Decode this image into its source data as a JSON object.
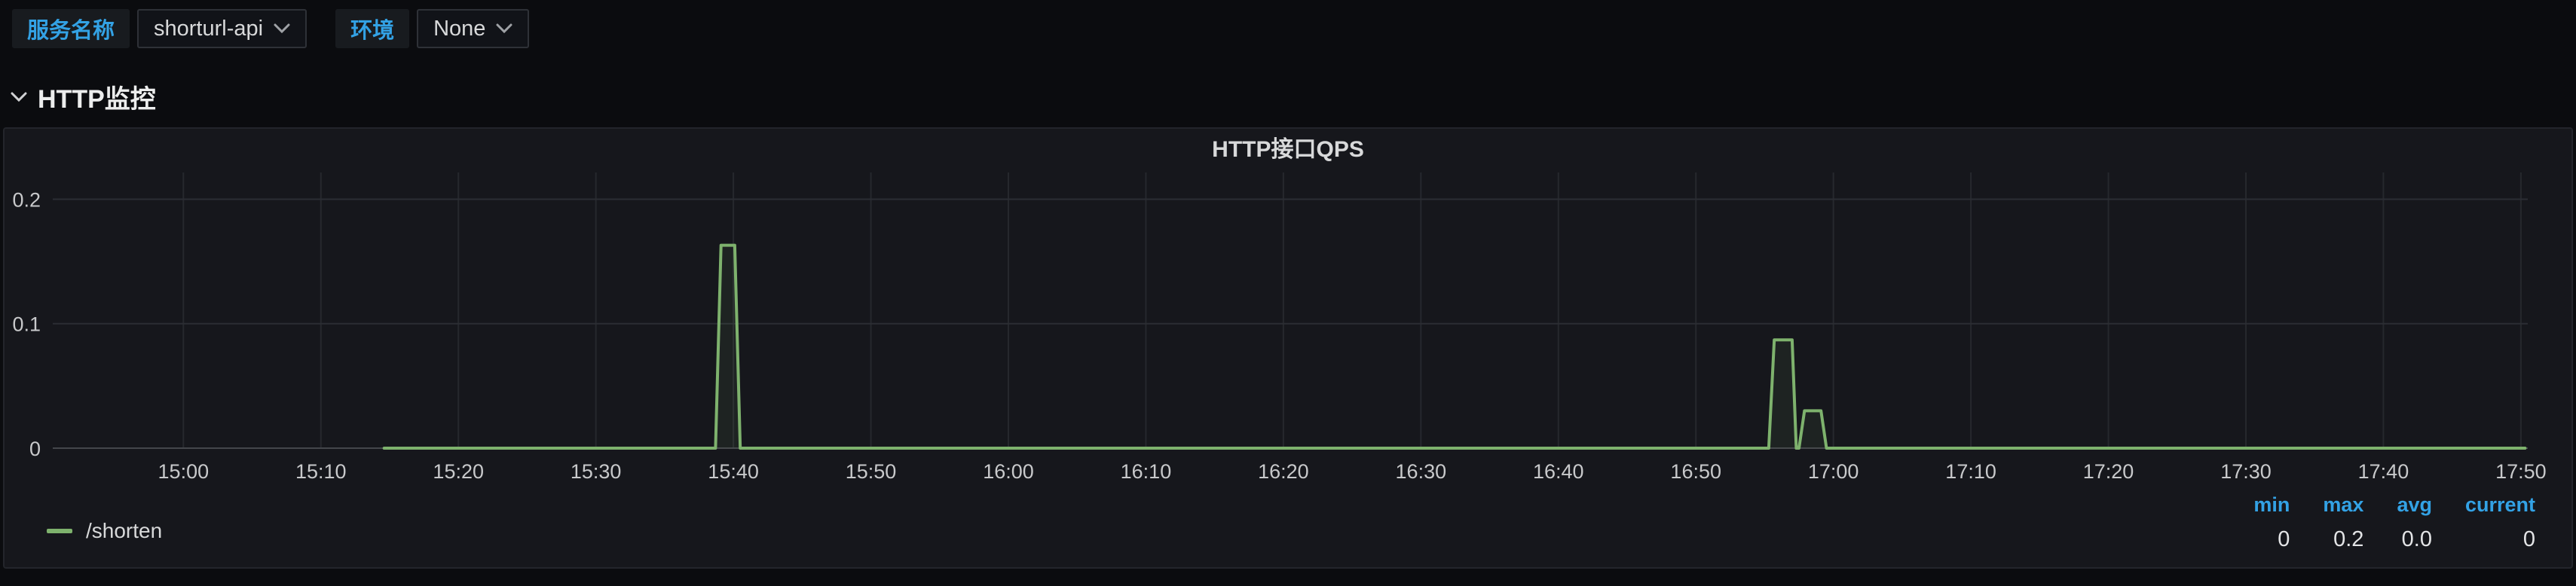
{
  "topbar": {
    "service_label": "服务名称",
    "service_value": "shorturl-api",
    "env_label": "环境",
    "env_value": "None"
  },
  "row": {
    "title": "HTTP监控"
  },
  "panel": {
    "title": "HTTP接口QPS"
  },
  "legend": {
    "series_label": "/shorten",
    "stats_headers": [
      "min",
      "max",
      "avg",
      "current"
    ],
    "stats_values": [
      "0",
      "0.2",
      "0.0",
      "0"
    ]
  },
  "colors": {
    "series_green": "#7eb26d",
    "stat_header_blue": "#33a2e5",
    "axis_text": "#c8c9cb",
    "grid_h": "#2b2d33",
    "grid_v": "#26282d",
    "zero_line": "#44464b",
    "panel_bg": "#16171c"
  },
  "chart_data": {
    "type": "line",
    "title": "HTTP接口QPS",
    "x_domain_minutes_from_1500": [
      -9.5,
      170.5
    ],
    "ylim": [
      0,
      0.213
    ],
    "grid": true,
    "legend_position": "bottom-left",
    "x_ticks": [
      {
        "m": 0,
        "label": "15:00"
      },
      {
        "m": 10,
        "label": "15:10"
      },
      {
        "m": 20,
        "label": "15:20"
      },
      {
        "m": 30,
        "label": "15:30"
      },
      {
        "m": 40,
        "label": "15:40"
      },
      {
        "m": 50,
        "label": "15:50"
      },
      {
        "m": 60,
        "label": "16:00"
      },
      {
        "m": 70,
        "label": "16:10"
      },
      {
        "m": 80,
        "label": "16:20"
      },
      {
        "m": 90,
        "label": "16:30"
      },
      {
        "m": 100,
        "label": "16:40"
      },
      {
        "m": 110,
        "label": "16:50"
      },
      {
        "m": 120,
        "label": "17:00"
      },
      {
        "m": 130,
        "label": "17:10"
      },
      {
        "m": 140,
        "label": "17:20"
      },
      {
        "m": 150,
        "label": "17:30"
      },
      {
        "m": 160,
        "label": "17:40"
      },
      {
        "m": 170,
        "label": "17:50"
      }
    ],
    "y_ticks": [
      {
        "v": 0,
        "label": "0"
      },
      {
        "v": 0.1,
        "label": "0.1"
      },
      {
        "v": 0.2,
        "label": "0.2"
      }
    ],
    "series": [
      {
        "name": "/shorten",
        "color": "#7eb26d",
        "points_min_val": [
          [
            14.6,
            0
          ],
          [
            38.7,
            0
          ],
          [
            39.1,
            0.163
          ],
          [
            40.1,
            0.163
          ],
          [
            40.5,
            0
          ],
          [
            115.3,
            0
          ],
          [
            115.7,
            0.087
          ],
          [
            117.0,
            0.087
          ],
          [
            117.3,
            0
          ],
          [
            117.5,
            0
          ],
          [
            117.9,
            0.03
          ],
          [
            119.1,
            0.03
          ],
          [
            119.5,
            0
          ],
          [
            170.3,
            0
          ]
        ],
        "stats": {
          "min": 0,
          "max": 0.2,
          "avg": 0.0,
          "current": 0
        }
      }
    ]
  }
}
